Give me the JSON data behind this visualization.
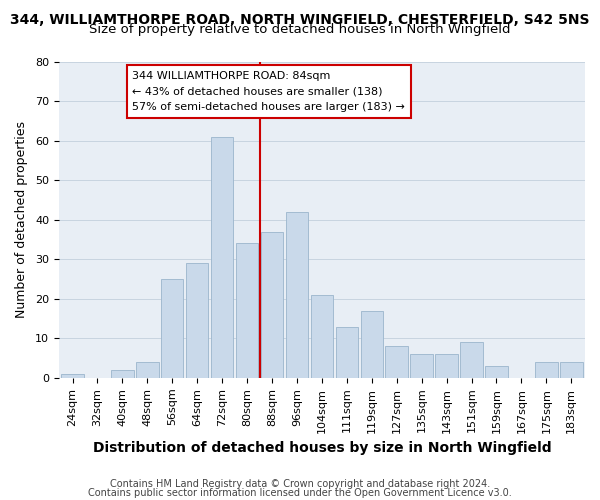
{
  "title": "344, WILLIAMTHORPE ROAD, NORTH WINGFIELD, CHESTERFIELD, S42 5NS",
  "subtitle": "Size of property relative to detached houses in North Wingfield",
  "xlabel": "Distribution of detached houses by size in North Wingfield",
  "ylabel": "Number of detached properties",
  "bar_labels": [
    "24sqm",
    "32sqm",
    "40sqm",
    "48sqm",
    "56sqm",
    "64sqm",
    "72sqm",
    "80sqm",
    "88sqm",
    "96sqm",
    "104sqm",
    "111sqm",
    "119sqm",
    "127sqm",
    "135sqm",
    "143sqm",
    "151sqm",
    "159sqm",
    "167sqm",
    "175sqm",
    "183sqm"
  ],
  "bar_heights": [
    1,
    0,
    2,
    4,
    25,
    29,
    61,
    34,
    37,
    42,
    21,
    13,
    17,
    8,
    6,
    6,
    9,
    3,
    0,
    4,
    4
  ],
  "bar_color": "#c9d9ea",
  "bar_edge_color": "#9bb5cc",
  "vline_color": "#cc0000",
  "annotation_line1": "344 WILLIAMTHORPE ROAD: 84sqm",
  "annotation_line2": "← 43% of detached houses are smaller (138)",
  "annotation_line3": "57% of semi-detached houses are larger (183) →",
  "annotation_box_facecolor": "#ffffff",
  "annotation_box_edgecolor": "#cc0000",
  "ylim": [
    0,
    80
  ],
  "yticks": [
    0,
    10,
    20,
    30,
    40,
    50,
    60,
    70,
    80
  ],
  "footer1": "Contains HM Land Registry data © Crown copyright and database right 2024.",
  "footer2": "Contains public sector information licensed under the Open Government Licence v3.0.",
  "title_fontsize": 10,
  "subtitle_fontsize": 9.5,
  "xlabel_fontsize": 10,
  "ylabel_fontsize": 9,
  "tick_fontsize": 8,
  "ann_fontsize": 8,
  "footer_fontsize": 7,
  "plot_bg_color": "#e8eef5",
  "fig_bg_color": "#ffffff",
  "grid_color": "#c8d4e0"
}
